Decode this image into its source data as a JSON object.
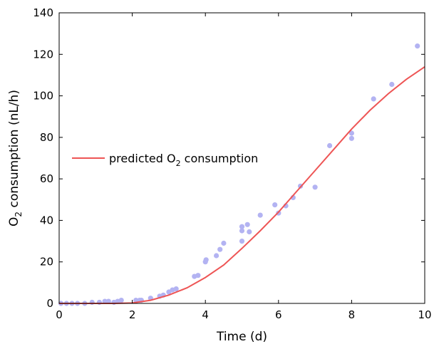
{
  "chart_data": {
    "type": "scatter",
    "xlabel": "Time (d)",
    "ylabel": {
      "pre": "O",
      "sub": "2",
      "post": " consumption (nL/h)"
    },
    "xlim": [
      0,
      10
    ],
    "ylim": [
      0,
      140
    ],
    "xticks": [
      "0",
      "2",
      "4",
      "6",
      "8",
      "10"
    ],
    "yticks": [
      "0",
      "20",
      "40",
      "60",
      "80",
      "100",
      "120",
      "140"
    ],
    "grid": false,
    "legend_position": "middle-left",
    "colors": {
      "points": "#b3b3f2",
      "line": "#ee5555",
      "axes": "#000000"
    },
    "legend": {
      "pre": "predicted O",
      "sub": "2",
      "post": " consumption"
    },
    "series": [
      {
        "type": "scatter",
        "points": [
          [
            0.05,
            0
          ],
          [
            0.2,
            0
          ],
          [
            0.35,
            0
          ],
          [
            0.5,
            0
          ],
          [
            0.7,
            0
          ],
          [
            0.9,
            0.5
          ],
          [
            1.1,
            0.5
          ],
          [
            1.25,
            1
          ],
          [
            1.35,
            1
          ],
          [
            1.5,
            0.5
          ],
          [
            1.6,
            1
          ],
          [
            1.7,
            1.5
          ],
          [
            2.1,
            1.5
          ],
          [
            2.2,
            1.5
          ],
          [
            2.25,
            1.5
          ],
          [
            2.5,
            2.5
          ],
          [
            2.75,
            3.5
          ],
          [
            2.85,
            4
          ],
          [
            3.0,
            5.5
          ],
          [
            3.1,
            6.5
          ],
          [
            3.2,
            7
          ],
          [
            3.7,
            13
          ],
          [
            3.8,
            13.5
          ],
          [
            4.0,
            20
          ],
          [
            4.02,
            21
          ],
          [
            4.3,
            23
          ],
          [
            4.4,
            26
          ],
          [
            4.5,
            29
          ],
          [
            5.0,
            30
          ],
          [
            5.0,
            35
          ],
          [
            5.0,
            37
          ],
          [
            5.15,
            38
          ],
          [
            5.2,
            34.5
          ],
          [
            5.5,
            42.5
          ],
          [
            5.9,
            47.5
          ],
          [
            6.0,
            43.5
          ],
          [
            6.2,
            47
          ],
          [
            6.4,
            51
          ],
          [
            6.6,
            56.5
          ],
          [
            7.0,
            56
          ],
          [
            7.4,
            76
          ],
          [
            8.0,
            82
          ],
          [
            8.0,
            79.5
          ],
          [
            8.6,
            98.5
          ],
          [
            9.1,
            105.5
          ],
          [
            9.8,
            124
          ]
        ]
      },
      {
        "type": "line",
        "points": [
          [
            0,
            0
          ],
          [
            1,
            0
          ],
          [
            1.5,
            0
          ],
          [
            2,
            0.2
          ],
          [
            2.5,
            1.5
          ],
          [
            3,
            4
          ],
          [
            3.5,
            7.5
          ],
          [
            4,
            12.5
          ],
          [
            4.5,
            18.5
          ],
          [
            5,
            26.5
          ],
          [
            5.5,
            35
          ],
          [
            6,
            44
          ],
          [
            6.5,
            54
          ],
          [
            7,
            64
          ],
          [
            7.5,
            74
          ],
          [
            8,
            84
          ],
          [
            8.5,
            93
          ],
          [
            9,
            101
          ],
          [
            9.5,
            108
          ],
          [
            10,
            114
          ]
        ]
      }
    ]
  }
}
